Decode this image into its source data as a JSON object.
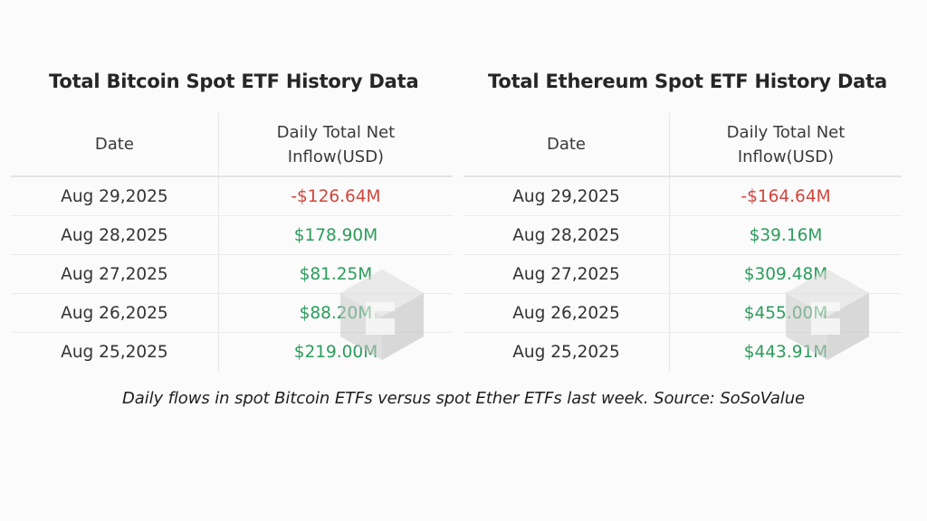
{
  "bitcoin": {
    "title": "Total Bitcoin Spot ETF History Data",
    "header_date": "Date",
    "header_flow_line1": "Daily Total Net",
    "header_flow_line2": "Inflow(USD)",
    "rows": [
      {
        "date": "Aug 29,2025",
        "flow": "-$126.64M",
        "sign": "neg"
      },
      {
        "date": "Aug 28,2025",
        "flow": "$178.90M",
        "sign": "pos"
      },
      {
        "date": "Aug 27,2025",
        "flow": "$81.25M",
        "sign": "pos"
      },
      {
        "date": "Aug 26,2025",
        "flow": "$88.20M",
        "sign": "pos"
      },
      {
        "date": "Aug 25,2025",
        "flow": "$219.00M",
        "sign": "pos"
      }
    ]
  },
  "ethereum": {
    "title": "Total Ethereum Spot ETF History Data",
    "header_date": "Date",
    "header_flow_line1": "Daily Total Net",
    "header_flow_line2": "Inflow(USD)",
    "rows": [
      {
        "date": "Aug 29,2025",
        "flow": "-$164.64M",
        "sign": "neg"
      },
      {
        "date": "Aug 28,2025",
        "flow": "$39.16M",
        "sign": "pos"
      },
      {
        "date": "Aug 27,2025",
        "flow": "$309.48M",
        "sign": "pos"
      },
      {
        "date": "Aug 26,2025",
        "flow": "$455.00M",
        "sign": "pos"
      },
      {
        "date": "Aug 25,2025",
        "flow": "$443.91M",
        "sign": "pos"
      }
    ]
  },
  "caption": "Daily flows in spot Bitcoin ETFs versus spot Ether ETFs last week. Source: SoSoValue",
  "colors": {
    "positive": "#2c9c5c",
    "negative": "#d0453d"
  },
  "icons": {
    "watermark": "sosovalue-logo-icon"
  }
}
